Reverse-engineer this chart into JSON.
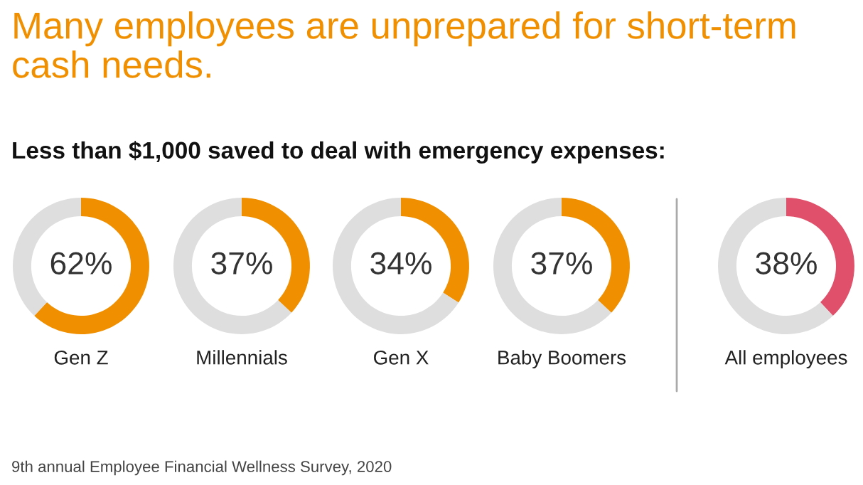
{
  "chart_data": [
    {
      "type": "donut",
      "title": "Many employees are unprepared for short-term cash needs.",
      "subtitle": "Less than $1,000 saved to deal with emergency expenses:",
      "annotations": [
        "9th annual Employee Financial Wellness Survey, 2020"
      ],
      "xlabel": "Gen Z",
      "categories": [
        null,
        null
      ],
      "values": [
        62,
        38
      ],
      "colors": [
        "#f09000",
        "#dedede"
      ],
      "value_labels": [
        "62%",
        null
      ]
    },
    {
      "type": "donut",
      "xlabel": "Millennials",
      "categories": [
        null,
        null
      ],
      "values": [
        37,
        63
      ],
      "colors": [
        "#f09000",
        "#dedede"
      ],
      "value_labels": [
        "37%",
        null
      ]
    },
    {
      "type": "donut",
      "xlabel": "Gen X",
      "categories": [
        null,
        null
      ],
      "values": [
        34,
        66
      ],
      "colors": [
        "#f09000",
        "#dedede"
      ],
      "value_labels": [
        "34%",
        null
      ]
    },
    {
      "type": "donut",
      "xlabel": "Baby Boomers",
      "categories": [
        null,
        null
      ],
      "values": [
        37,
        63
      ],
      "colors": [
        "#f09000",
        "#dedede"
      ],
      "value_labels": [
        "37%",
        null
      ]
    },
    {
      "type": "donut",
      "xlabel": "All employees",
      "categories": [
        null,
        null
      ],
      "values": [
        38,
        62
      ],
      "colors": [
        "#e0506a",
        "#dedede"
      ],
      "value_labels": [
        "38%",
        null
      ]
    }
  ]
}
